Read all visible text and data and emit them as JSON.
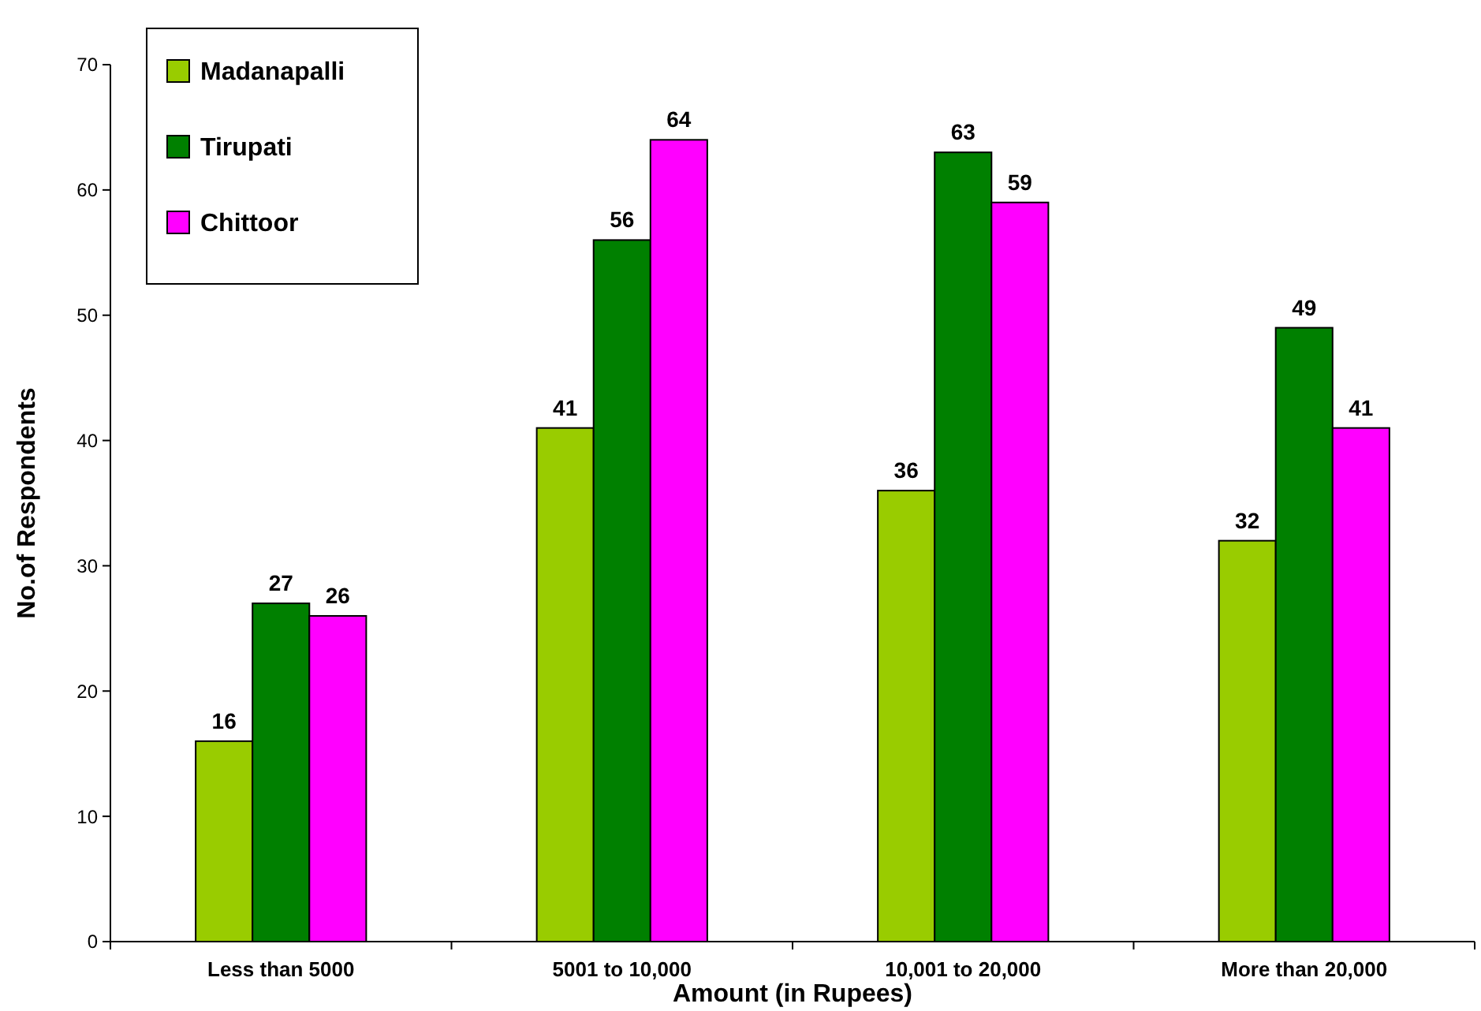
{
  "chart_data": {
    "type": "bar",
    "xlabel": "Amount (in Rupees)",
    "ylabel": "No.of Respondents",
    "categories": [
      "Less than 5000",
      "5001 to 10,000",
      "10,001 to 20,000",
      "More than 20,000"
    ],
    "series": [
      {
        "name": "Madanapalli",
        "color": "#99cc00",
        "values": [
          16,
          41,
          36,
          32
        ]
      },
      {
        "name": "Tirupati",
        "color": "#008000",
        "values": [
          27,
          56,
          63,
          49
        ]
      },
      {
        "name": "Chittoor",
        "color": "#ff00ff",
        "values": [
          26,
          64,
          59,
          41
        ]
      }
    ],
    "ylim": [
      0,
      70
    ],
    "yticks": [
      0,
      10,
      20,
      30,
      40,
      50,
      60,
      70
    ],
    "data_labels": true,
    "legend": "top left",
    "grid": false
  }
}
